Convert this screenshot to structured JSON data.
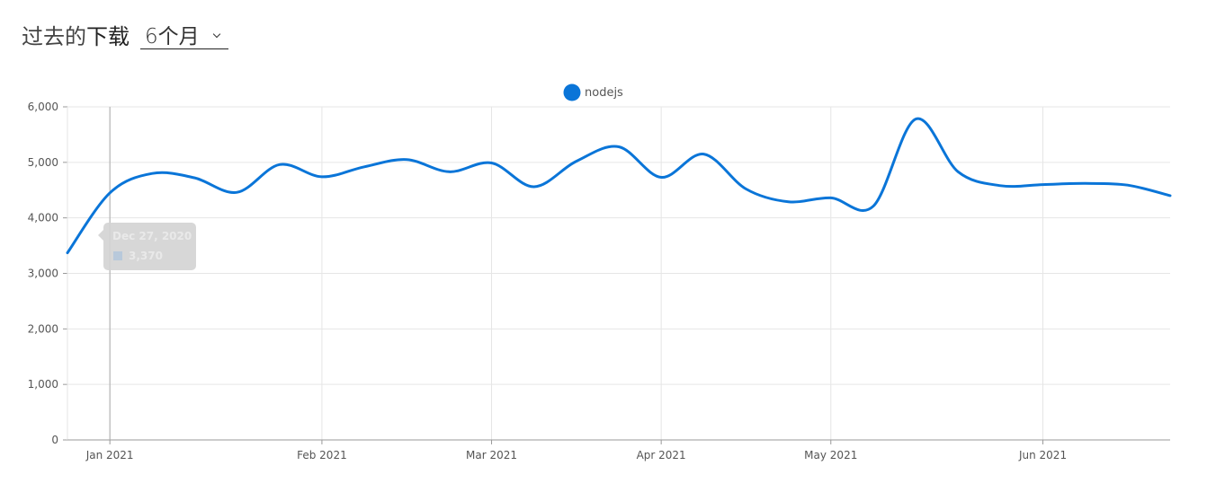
{
  "header": {
    "title_part1": "过去的",
    "title_part2": "下载",
    "period": "6个月"
  },
  "tooltip": {
    "date": "Dec 27, 2020",
    "value": "3,370"
  },
  "colors": {
    "series": "#0a75d8",
    "grid": "#e6e6e6",
    "axis": "#999999",
    "tick_text": "#555555"
  },
  "chart_data": {
    "type": "line",
    "title": "",
    "xlabel": "",
    "ylabel": "",
    "ylim": [
      0,
      6000
    ],
    "y_ticks": [
      0,
      1000,
      2000,
      3000,
      4000,
      5000,
      6000
    ],
    "y_tick_labels": [
      "0",
      "1,000",
      "2,000",
      "3,000",
      "4,000",
      "5,000",
      "6,000"
    ],
    "x_range": [
      "2020-12-27",
      "2021-06-27"
    ],
    "x_ticks": [
      {
        "date": "2021-01-03",
        "label": "Jan 2021"
      },
      {
        "date": "2021-02-07",
        "label": "Feb 2021"
      },
      {
        "date": "2021-03-07",
        "label": "Mar 2021"
      },
      {
        "date": "2021-04-04",
        "label": "Apr 2021"
      },
      {
        "date": "2021-05-02",
        "label": "May 2021"
      },
      {
        "date": "2021-06-06",
        "label": "Jun 2021"
      }
    ],
    "legend": "top-center",
    "grid": true,
    "series": [
      {
        "name": "nodejs",
        "color": "#0a75d8",
        "points": [
          {
            "x": "2020-12-27",
            "y": 3370
          },
          {
            "x": "2021-01-03",
            "y": 4450
          },
          {
            "x": "2021-01-10",
            "y": 4800
          },
          {
            "x": "2021-01-17",
            "y": 4720
          },
          {
            "x": "2021-01-24",
            "y": 4460
          },
          {
            "x": "2021-01-31",
            "y": 4960
          },
          {
            "x": "2021-02-07",
            "y": 4740
          },
          {
            "x": "2021-02-14",
            "y": 4920
          },
          {
            "x": "2021-02-21",
            "y": 5050
          },
          {
            "x": "2021-02-28",
            "y": 4830
          },
          {
            "x": "2021-03-07",
            "y": 4990
          },
          {
            "x": "2021-03-14",
            "y": 4560
          },
          {
            "x": "2021-03-21",
            "y": 5020
          },
          {
            "x": "2021-03-28",
            "y": 5280
          },
          {
            "x": "2021-04-04",
            "y": 4730
          },
          {
            "x": "2021-04-11",
            "y": 5150
          },
          {
            "x": "2021-04-18",
            "y": 4520
          },
          {
            "x": "2021-04-25",
            "y": 4290
          },
          {
            "x": "2021-05-02",
            "y": 4360
          },
          {
            "x": "2021-05-09",
            "y": 4210
          },
          {
            "x": "2021-05-16",
            "y": 5780
          },
          {
            "x": "2021-05-23",
            "y": 4830
          },
          {
            "x": "2021-05-30",
            "y": 4580
          },
          {
            "x": "2021-06-06",
            "y": 4600
          },
          {
            "x": "2021-06-13",
            "y": 4620
          },
          {
            "x": "2021-06-20",
            "y": 4590
          },
          {
            "x": "2021-06-27",
            "y": 4400
          }
        ]
      }
    ]
  }
}
